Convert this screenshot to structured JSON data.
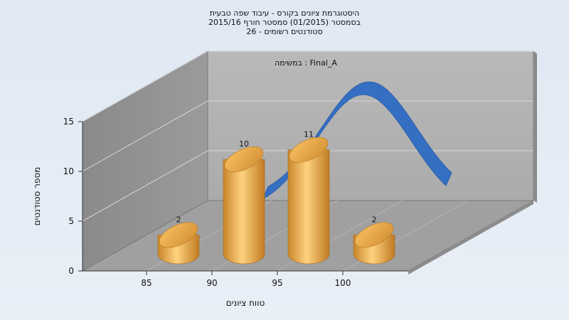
{
  "chart_data": {
    "type": "bar",
    "title": [
      "היסטוגרמת ציונים בקורס - עיבוד שפה טבעית",
      "בסמסטר  (01/2015)  סמסטר חורף 2015/16",
      "סטודנטים רשומים - 26"
    ],
    "annotation": "במשימה : Final_A",
    "xlabel": "טווח ציונים",
    "ylabel": "מספר סטודנטים",
    "x_ticks": [
      "85",
      "90",
      "95",
      "100"
    ],
    "y_ticks": [
      0,
      5,
      10,
      15
    ],
    "ylim": [
      0,
      15
    ],
    "categories": [
      "85-90",
      "90-95",
      "95-100",
      "100-105"
    ],
    "values": [
      2,
      10,
      11,
      2
    ],
    "curve": {
      "type": "line",
      "description": "normal distribution curve overlay",
      "color": "#2f6cc4"
    },
    "grid": true,
    "bar_color": "#e6a640"
  }
}
